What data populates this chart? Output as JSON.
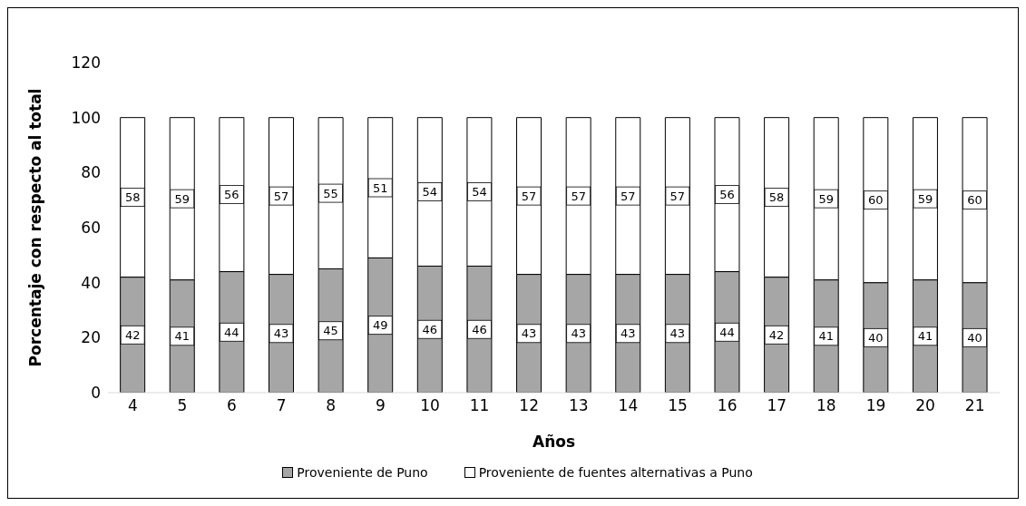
{
  "chart_data": {
    "type": "bar",
    "stacked": true,
    "xlabel": "Años",
    "ylabel": "Porcentaje con respecto al total",
    "categories": [
      "4",
      "5",
      "6",
      "7",
      "8",
      "9",
      "10",
      "11",
      "12",
      "13",
      "14",
      "15",
      "16",
      "17",
      "18",
      "19",
      "20",
      "21"
    ],
    "series": [
      {
        "name": "Proveniente de Puno",
        "color": "#a6a6a6",
        "values": [
          42,
          41,
          44,
          43,
          45,
          49,
          46,
          46,
          43,
          43,
          43,
          43,
          44,
          42,
          41,
          40,
          41,
          40
        ]
      },
      {
        "name": "Proveniente de fuentes alternativas a Puno",
        "color": "#ffffff",
        "values": [
          58,
          59,
          56,
          57,
          55,
          51,
          54,
          54,
          57,
          57,
          57,
          57,
          56,
          58,
          59,
          60,
          59,
          60
        ]
      }
    ],
    "ylim": [
      0,
      120
    ],
    "yticks": [
      0,
      20,
      40,
      60,
      80,
      100,
      120
    ],
    "grid": false,
    "legend": "bottom",
    "data_labels": true
  }
}
